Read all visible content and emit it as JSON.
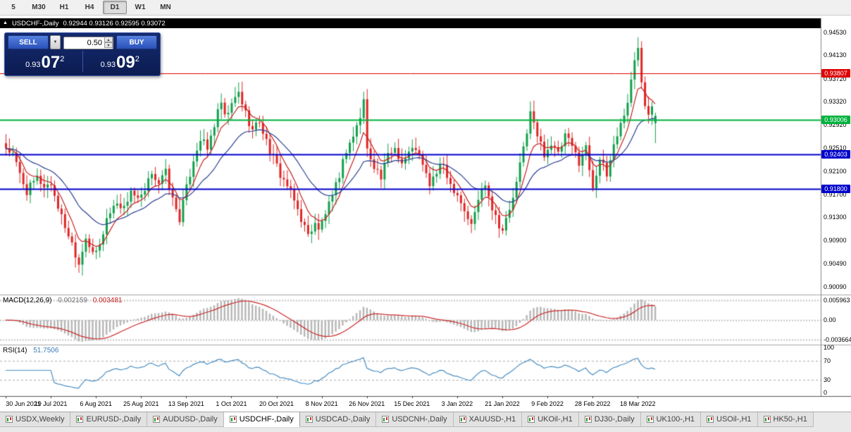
{
  "header": {
    "symbol": "USDCHF-,Daily",
    "ohlc_text": "0.92944 0.93126 0.92595 0.93072"
  },
  "toolbar": {
    "timeframes": [
      "5",
      "M30",
      "H1",
      "H4",
      "D1",
      "W1",
      "MN"
    ],
    "active": "D1"
  },
  "trade_panel": {
    "sell_label": "SELL",
    "buy_label": "BUY",
    "volume": "0.50",
    "caret": "▼",
    "spin_up": "▲",
    "spin_down": "▼",
    "bid": {
      "prefix": "0.93",
      "big": "07",
      "sup": "2"
    },
    "ask": {
      "prefix": "0.93",
      "big": "09",
      "sup": "2"
    }
  },
  "chart_data": {
    "type": "candlestick",
    "symbol": "USDCHF-,Daily",
    "timeframe": "Daily",
    "open": 0.92944,
    "high": 0.93126,
    "low": 0.92595,
    "close": 0.93072,
    "num_candles": 188,
    "label_step": 13,
    "x_labels": [
      "30 Jun 2021",
      "19 Jul 2021",
      "6 Aug 2021",
      "25 Aug 2021",
      "13 Sep 2021",
      "1 Oct 2021",
      "20 Oct 2021",
      "8 Nov 2021",
      "26 Nov 2021",
      "15 Dec 2021",
      "3 Jan 2022",
      "21 Jan 2022",
      "9 Feb 2022",
      "28 Feb 2022",
      "18 Mar 2022"
    ],
    "close_waypoints": [
      [
        0,
        0.9252
      ],
      [
        2,
        0.9238
      ],
      [
        4,
        0.9205
      ],
      [
        6,
        0.9175
      ],
      [
        9,
        0.9198
      ],
      [
        11,
        0.9185
      ],
      [
        13,
        0.9188
      ],
      [
        16,
        0.913
      ],
      [
        19,
        0.9085
      ],
      [
        21,
        0.905
      ],
      [
        23,
        0.9098
      ],
      [
        25,
        0.9062
      ],
      [
        27,
        0.908
      ],
      [
        29,
        0.9128
      ],
      [
        32,
        0.9158
      ],
      [
        34,
        0.9145
      ],
      [
        36,
        0.9178
      ],
      [
        38,
        0.9158
      ],
      [
        40,
        0.9172
      ],
      [
        42,
        0.921
      ],
      [
        44,
        0.919
      ],
      [
        46,
        0.9208
      ],
      [
        48,
        0.916
      ],
      [
        50,
        0.9128
      ],
      [
        52,
        0.918
      ],
      [
        54,
        0.9232
      ],
      [
        56,
        0.9268
      ],
      [
        58,
        0.9248
      ],
      [
        60,
        0.9292
      ],
      [
        62,
        0.933
      ],
      [
        63,
        0.9302
      ],
      [
        65,
        0.9325
      ],
      [
        67,
        0.9348
      ],
      [
        69,
        0.9312
      ],
      [
        71,
        0.9282
      ],
      [
        73,
        0.9298
      ],
      [
        75,
        0.9262
      ],
      [
        77,
        0.9232
      ],
      [
        79,
        0.9205
      ],
      [
        81,
        0.9185
      ],
      [
        83,
        0.9158
      ],
      [
        85,
        0.9128
      ],
      [
        87,
        0.9098
      ],
      [
        89,
        0.9122
      ],
      [
        90,
        0.9105
      ],
      [
        92,
        0.9138
      ],
      [
        94,
        0.9162
      ],
      [
        96,
        0.9205
      ],
      [
        98,
        0.9248
      ],
      [
        100,
        0.9272
      ],
      [
        102,
        0.9305
      ],
      [
        103,
        0.9335
      ],
      [
        104,
        0.9248
      ],
      [
        106,
        0.9222
      ],
      [
        108,
        0.9198
      ],
      [
        110,
        0.9238
      ],
      [
        112,
        0.9252
      ],
      [
        114,
        0.9225
      ],
      [
        116,
        0.9242
      ],
      [
        118,
        0.9252
      ],
      [
        120,
        0.9218
      ],
      [
        122,
        0.9188
      ],
      [
        124,
        0.9208
      ],
      [
        126,
        0.9222
      ],
      [
        128,
        0.9188
      ],
      [
        130,
        0.9172
      ],
      [
        132,
        0.9142
      ],
      [
        134,
        0.9115
      ],
      [
        136,
        0.9162
      ],
      [
        138,
        0.9192
      ],
      [
        140,
        0.9148
      ],
      [
        142,
        0.9118
      ],
      [
        143,
        0.9108
      ],
      [
        145,
        0.9142
      ],
      [
        147,
        0.9188
      ],
      [
        149,
        0.9252
      ],
      [
        151,
        0.9312
      ],
      [
        153,
        0.9272
      ],
      [
        155,
        0.9242
      ],
      [
        157,
        0.9258
      ],
      [
        159,
        0.9238
      ],
      [
        161,
        0.9272
      ],
      [
        163,
        0.9252
      ],
      [
        165,
        0.9228
      ],
      [
        167,
        0.9252
      ],
      [
        168,
        0.9215
      ],
      [
        169,
        0.9185
      ],
      [
        171,
        0.9232
      ],
      [
        173,
        0.9202
      ],
      [
        175,
        0.9258
      ],
      [
        177,
        0.9292
      ],
      [
        179,
        0.9332
      ],
      [
        181,
        0.9402
      ],
      [
        182,
        0.9428
      ],
      [
        183,
        0.9372
      ],
      [
        184,
        0.9332
      ],
      [
        185,
        0.9312
      ],
      [
        186,
        0.933
      ],
      [
        187,
        0.93072
      ]
    ],
    "last_candle": {
      "o": 0.92944,
      "h": 0.93126,
      "l": 0.92595,
      "c": 0.93072
    },
    "y_min": 0.8995,
    "y_max": 0.946,
    "y_ticks": [
      "0.94530",
      "0.94130",
      "0.93720",
      "0.93320",
      "0.92920",
      "0.92510",
      "0.92100",
      "0.91700",
      "0.91300",
      "0.90900",
      "0.90490",
      "0.90090"
    ],
    "hlines": [
      {
        "value": 0.93807,
        "label": "0.93807",
        "color": "#dd0000",
        "width": 1
      },
      {
        "value": 0.93006,
        "label": "0.93006",
        "color": "#00b23d",
        "width": 2
      },
      {
        "value": 0.92403,
        "label": "0.92403",
        "color": "#0000cc",
        "width": 2
      },
      {
        "value": 0.918,
        "label": "0.91800",
        "color": "#0000cc",
        "width": 2
      }
    ],
    "candle_up_color": "#12a04c",
    "candle_down_color": "#e02525",
    "ma_fast": {
      "period": 7,
      "color": "#c82020"
    },
    "ma_slow": {
      "period": 21,
      "color": "#2b3f93"
    },
    "macd": {
      "label": "MACD(12,26,9)",
      "value": "0.002159",
      "signal_value": "0.003481",
      "fast": 12,
      "slow": 26,
      "signal_period": 9,
      "axis_labels": [
        "0.005963",
        "0.00",
        "-0.003664"
      ],
      "hist_color": "#b6b6b6",
      "signal_color": "#cc2a2a"
    },
    "rsi": {
      "label": "RSI(14)",
      "value": "51.7506",
      "period": 14,
      "levels": [
        70,
        30
      ],
      "axis_labels": [
        "100",
        "70",
        "30",
        "0"
      ],
      "color": "#4a8fc4"
    }
  },
  "bottom_tabs": {
    "active_index": 3,
    "items": [
      "USDX,Weekly",
      "EURUSD-,Daily",
      "AUDUSD-,Daily",
      "USDCHF-,Daily",
      "USDCAD-,Daily",
      "USDCNH-,Daily",
      "XAUUSD-,H1",
      "UKOil-,H1",
      "DJ30-,Daily",
      "UK100-,H1",
      "USOil-,H1",
      "HK50-,H1"
    ]
  }
}
